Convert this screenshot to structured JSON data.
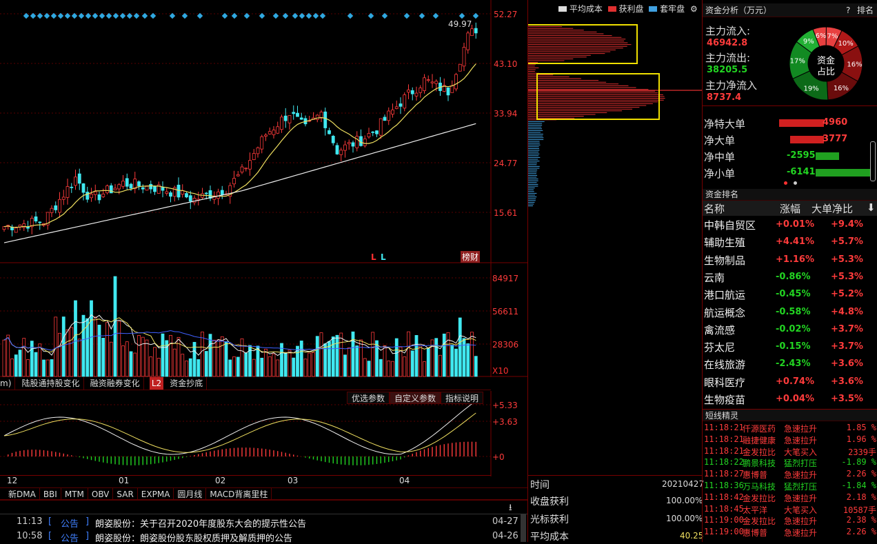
{
  "main_chart": {
    "price_ticks": [
      "52.27",
      "43.10",
      "33.94",
      "24.77",
      "15.61"
    ],
    "max_label": "49.97",
    "markers": [
      "L",
      "L"
    ],
    "badge": "榜财"
  },
  "volume_chart": {
    "ticks": [
      "84917",
      "56611",
      "28306"
    ],
    "unit": "X10"
  },
  "indicator_tabs": [
    "m)",
    "陆股通持股变化",
    "融资融券变化",
    "L2",
    "资金抄底"
  ],
  "indicator_buttons": [
    "优选参数",
    "自定义参数",
    "指标说明"
  ],
  "macd_ticks": [
    "+5.33",
    "+3.63",
    "+0"
  ],
  "x_axis_months": [
    "12",
    "01",
    "02",
    "03",
    "04"
  ],
  "bottom_tabs": [
    "新DMA",
    "BBI",
    "MTM",
    "OBV",
    "SAR",
    "EXPMA",
    "圆月线",
    "MACD背离里柱"
  ],
  "news": [
    {
      "time": "11:13",
      "type": "公告",
      "title": "朗姿股份：关于召开2020年度股东大会的提示性公告",
      "date": "04-27"
    },
    {
      "time": "10:58",
      "type": "公告",
      "title": "朗姿股份：朗姿股份股东股权质押及解质押的公告",
      "date": "04-26"
    }
  ],
  "chip_panel": {
    "legend": [
      "平均成本",
      "获利盘",
      "套牢盘"
    ],
    "time_label": "时间",
    "time_value": "20210427",
    "close_profit_label": "收盘获利",
    "close_profit_value": "100.00%",
    "cursor_profit_label": "光标获利",
    "cursor_profit_value": "100.00%",
    "avg_cost_label": "平均成本",
    "avg_cost_value": "40.25"
  },
  "fund_analysis": {
    "title": "资金分析（万元）",
    "help": "?",
    "rank_link": "排名",
    "inflow_label": "主力流入:",
    "inflow_value": "46942.8",
    "outflow_label": "主力流出:",
    "outflow_value": "38205.5",
    "net_label": "主力净流入",
    "net_value": "8737.4",
    "donut_center": [
      "资金",
      "占比"
    ],
    "donut_slices": [
      {
        "label": "6%",
        "value": 6,
        "color": "#e84040"
      },
      {
        "label": "7%",
        "value": 7,
        "color": "#e84040"
      },
      {
        "label": "10%",
        "value": 10,
        "color": "#b01818"
      },
      {
        "label": "16%",
        "value": 16,
        "color": "#8a1010"
      },
      {
        "label": "16%",
        "value": 16,
        "color": "#6a0c0c"
      },
      {
        "label": "19%",
        "value": 19,
        "color": "#0c6a18"
      },
      {
        "label": "17%",
        "value": 17,
        "color": "#128a22"
      },
      {
        "label": "9%",
        "value": 9,
        "color": "#22b034"
      }
    ],
    "net_orders": [
      {
        "label": "净特大单",
        "value": "4960",
        "amount": 4960,
        "color": "#d02020"
      },
      {
        "label": "净大单",
        "value": "3777",
        "amount": 3777,
        "color": "#d02020"
      },
      {
        "label": "净中单",
        "value": "-2595",
        "amount": -2595,
        "color": "#20a020"
      },
      {
        "label": "净小单",
        "value": "-6141",
        "amount": -6141,
        "color": "#20a020"
      }
    ]
  },
  "fund_rank": {
    "title": "资金排名",
    "headers": [
      "名称",
      "涨幅",
      "大单净比"
    ],
    "rows": [
      {
        "name": "中韩自贸区",
        "change": "+0.01%",
        "ratio": "+9.4%"
      },
      {
        "name": "辅助生殖",
        "change": "+4.41%",
        "ratio": "+5.7%"
      },
      {
        "name": "生物制品",
        "change": "+1.16%",
        "ratio": "+5.3%"
      },
      {
        "name": "云南",
        "change": "-0.86%",
        "ratio": "+5.3%"
      },
      {
        "name": "港口航运",
        "change": "-0.45%",
        "ratio": "+5.2%"
      },
      {
        "name": "航运概念",
        "change": "-0.58%",
        "ratio": "+4.8%"
      },
      {
        "name": "禽流感",
        "change": "-0.02%",
        "ratio": "+3.7%"
      },
      {
        "name": "芬太尼",
        "change": "-0.15%",
        "ratio": "+3.7%"
      },
      {
        "name": "在线旅游",
        "change": "-2.43%",
        "ratio": "+3.6%"
      },
      {
        "name": "眼科医疗",
        "change": "+0.74%",
        "ratio": "+3.6%"
      },
      {
        "name": "生物疫苗",
        "change": "+0.04%",
        "ratio": "+3.5%"
      }
    ]
  },
  "short_flash": {
    "title": "短线精灵",
    "rows": [
      {
        "time": "11:18:21",
        "name": "仟源医药",
        "event": "急速拉升",
        "value": "1.85 %",
        "up": true
      },
      {
        "time": "11:18:21",
        "name": "融捷健康",
        "event": "急速拉升",
        "value": "1.96 %",
        "up": true
      },
      {
        "time": "11:18:21",
        "name": "金发拉比",
        "event": "大笔买入",
        "value": "2339手",
        "up": true
      },
      {
        "time": "11:18:22",
        "name": "鹏景科技",
        "event": "猛烈打压",
        "value": "-1.89 %",
        "up": false
      },
      {
        "time": "11:18:27",
        "name": "惠博普",
        "event": "急速拉升",
        "value": "2.26 %",
        "up": true
      },
      {
        "time": "11:18:36",
        "name": "万马科技",
        "event": "猛烈打压",
        "value": "-1.84 %",
        "up": false
      },
      {
        "time": "11:18:42",
        "name": "金发拉比",
        "event": "急速拉升",
        "value": "2.18 %",
        "up": true
      },
      {
        "time": "11:18:45",
        "name": "太平洋",
        "event": "大笔买入",
        "value": "10587手",
        "up": true
      },
      {
        "time": "11:19:00",
        "name": "金发拉比",
        "event": "急速拉升",
        "value": "2.38 %",
        "up": true
      },
      {
        "time": "11:19:00",
        "name": "惠博普",
        "event": "急速拉升",
        "value": "2.26 %",
        "up": true
      }
    ]
  },
  "colors": {
    "up": "#ff3b3b",
    "down": "#22d422",
    "cyan": "#40e8f0",
    "yellow_box": "#f0e000",
    "grid": "#5a0000"
  }
}
